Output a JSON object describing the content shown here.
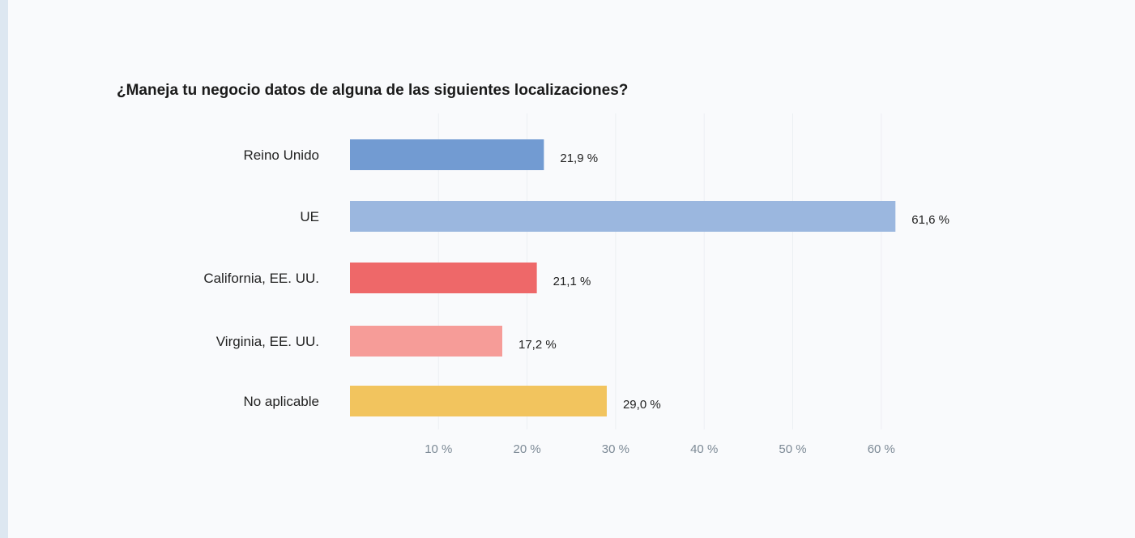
{
  "chart_data": {
    "type": "bar",
    "orientation": "horizontal",
    "title": "¿Maneja tu negocio datos de alguna de las siguientes localizaciones?",
    "categories": [
      "Reino Unido",
      "UE",
      "California, EE. UU.",
      "Virginia, EE. UU.",
      "No aplicable"
    ],
    "values": [
      21.9,
      61.6,
      21.1,
      17.2,
      29.0
    ],
    "value_labels": [
      "21,9 %",
      "61,6 %",
      "21,1 %",
      "17,2 %",
      "29,0 %"
    ],
    "colors": [
      "#729bd2",
      "#9bb7df",
      "#ee6869",
      "#f69c98",
      "#f2c45e"
    ],
    "xticks": [
      10,
      20,
      30,
      40,
      50,
      60
    ],
    "xtick_labels": [
      "10 %",
      "20 %",
      "30 %",
      "40 %",
      "50 %",
      "60 %"
    ],
    "xlim": [
      0,
      70
    ],
    "xlabel": "",
    "ylabel": "",
    "grid": true,
    "legend": "none"
  }
}
